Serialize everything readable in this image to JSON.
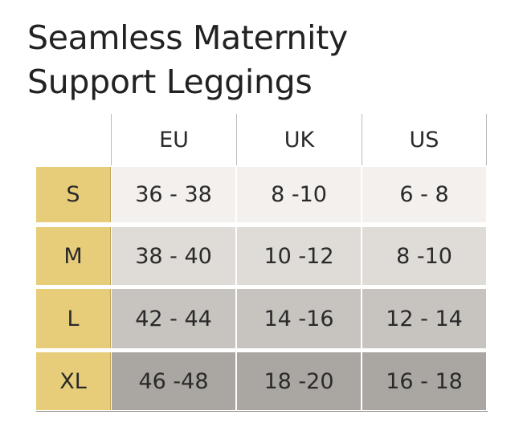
{
  "header": {
    "title_lines": [
      "Seamless Maternity",
      "Support Leggings"
    ]
  },
  "table": {
    "columns": [
      "EU",
      "UK",
      "US"
    ],
    "rows": [
      [
        "S",
        "36 - 38",
        "8 -10",
        "6 - 8"
      ],
      [
        "M",
        "38 - 40",
        "10 -12",
        "8 -10"
      ],
      [
        "L",
        "42 - 44",
        "14 -16",
        "12 - 14"
      ],
      [
        "XL",
        "46 -48",
        "18 -20",
        "16 - 18"
      ]
    ]
  }
}
